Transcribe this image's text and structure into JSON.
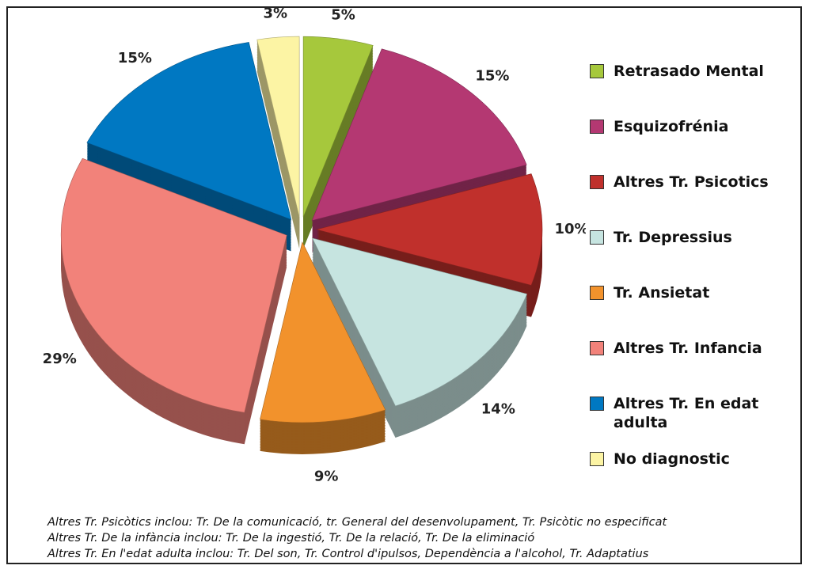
{
  "chart_data": {
    "type": "pie",
    "categories": [
      "Retrasado Mental",
      "Esquizofrénia",
      "Altres Tr. Psicotics",
      "Tr. Depressius",
      "Tr. Ansietat",
      "Altres Tr. Infancia",
      "Altres Tr. En edat adulta",
      "No diagnostic"
    ],
    "values": [
      5,
      15,
      10,
      14,
      9,
      29,
      15,
      3
    ],
    "value_labels": [
      "5%",
      "15%",
      "10%",
      "14%",
      "9%",
      "29%",
      "15%",
      "3%"
    ],
    "colors": [
      "#a6c83c",
      "#b43872",
      "#c0302c",
      "#c6e4e0",
      "#f2922c",
      "#f2827a",
      "#0078c2",
      "#fcf4a4"
    ],
    "legend": "right"
  },
  "notes": [
    "Altres Tr. Psicòtics inclou: Tr. De la comunicació, tr. General del desenvolupament, Tr. Psicòtic no especificat",
    "Altres Tr. De la infància inclou: Tr. De la ingestió, Tr. De la relació, Tr. De la eliminació",
    "Altres Tr. En l'edat adulta inclou: Tr. Del son, Tr. Control d'ipulsos, Dependència a l'alcohol, Tr. Adaptatius"
  ]
}
